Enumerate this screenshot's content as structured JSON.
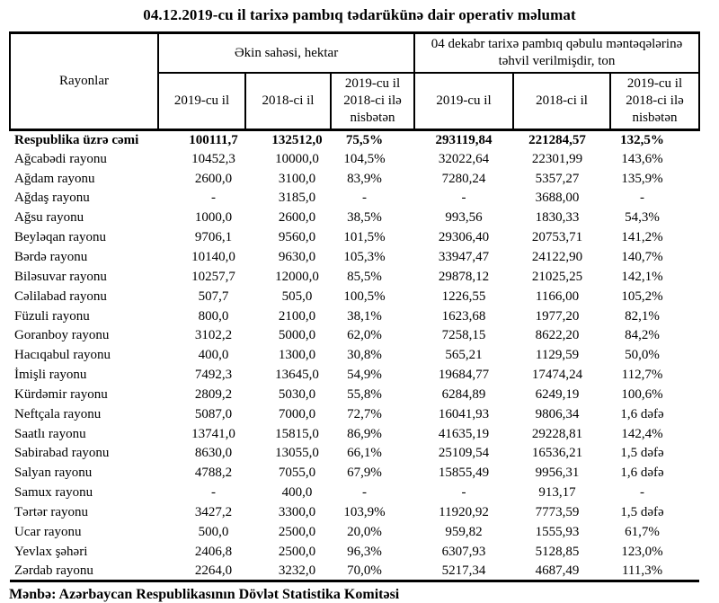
{
  "title": "04.12.2019-cu il tarixə pambıq tədarükünə dair operativ məlumat",
  "table": {
    "corner_header": "Rayonlar",
    "group_headers": [
      "Əkin sahəsi, hektar",
      "04 dekabr tarixə pambıq qəbulu məntəqələrinə təhvil verilmişdir, ton"
    ],
    "sub_headers": [
      "2019-cu il",
      "2018-ci il",
      "2019-cu il 2018-ci ilə nisbətən",
      "2019-cu il",
      "2018-ci il",
      "2019-cu il 2018-ci ilə nisbətən"
    ],
    "rows": [
      {
        "label": "Respublika üzrə cəmi",
        "bold": true,
        "values": [
          "100111,7",
          "132512,0",
          "75,5%",
          "293119,84",
          "221284,57",
          "132,5%"
        ]
      },
      {
        "label": "Ağcabədi rayonu",
        "bold": false,
        "values": [
          "10452,3",
          "10000,0",
          "104,5%",
          "32022,64",
          "22301,99",
          "143,6%"
        ]
      },
      {
        "label": "Ağdam rayonu",
        "bold": false,
        "values": [
          "2600,0",
          "3100,0",
          "83,9%",
          "7280,24",
          "5357,27",
          "135,9%"
        ]
      },
      {
        "label": "Ağdaş rayonu",
        "bold": false,
        "values": [
          "-",
          "3185,0",
          "-",
          "-",
          "3688,00",
          "-"
        ]
      },
      {
        "label": "Ağsu rayonu",
        "bold": false,
        "values": [
          "1000,0",
          "2600,0",
          "38,5%",
          "993,56",
          "1830,33",
          "54,3%"
        ]
      },
      {
        "label": "Beyləqan rayonu",
        "bold": false,
        "values": [
          "9706,1",
          "9560,0",
          "101,5%",
          "29306,40",
          "20753,71",
          "141,2%"
        ]
      },
      {
        "label": "Bərdə rayonu",
        "bold": false,
        "values": [
          "10140,0",
          "9630,0",
          "105,3%",
          "33947,47",
          "24122,90",
          "140,7%"
        ]
      },
      {
        "label": "Biləsuvar rayonu",
        "bold": false,
        "values": [
          "10257,7",
          "12000,0",
          "85,5%",
          "29878,12",
          "21025,25",
          "142,1%"
        ]
      },
      {
        "label": "Cəlilabad rayonu",
        "bold": false,
        "values": [
          "507,7",
          "505,0",
          "100,5%",
          "1226,55",
          "1166,00",
          "105,2%"
        ]
      },
      {
        "label": "Füzuli rayonu",
        "bold": false,
        "values": [
          "800,0",
          "2100,0",
          "38,1%",
          "1623,68",
          "1977,20",
          "82,1%"
        ]
      },
      {
        "label": "Goranboy rayonu",
        "bold": false,
        "values": [
          "3102,2",
          "5000,0",
          "62,0%",
          "7258,15",
          "8622,20",
          "84,2%"
        ]
      },
      {
        "label": "Hacıqabul rayonu",
        "bold": false,
        "values": [
          "400,0",
          "1300,0",
          "30,8%",
          "565,21",
          "1129,59",
          "50,0%"
        ]
      },
      {
        "label": "İmişli rayonu",
        "bold": false,
        "values": [
          "7492,3",
          "13645,0",
          "54,9%",
          "19684,77",
          "17474,24",
          "112,7%"
        ]
      },
      {
        "label": "Kürdəmir rayonu",
        "bold": false,
        "values": [
          "2809,2",
          "5030,0",
          "55,8%",
          "6284,89",
          "6249,19",
          "100,6%"
        ]
      },
      {
        "label": "Neftçala rayonu",
        "bold": false,
        "values": [
          "5087,0",
          "7000,0",
          "72,7%",
          "16041,93",
          "9806,34",
          "1,6 dəfə"
        ]
      },
      {
        "label": "Saatlı rayonu",
        "bold": false,
        "values": [
          "13741,0",
          "15815,0",
          "86,9%",
          "41635,19",
          "29228,81",
          "142,4%"
        ]
      },
      {
        "label": "Sabirabad rayonu",
        "bold": false,
        "values": [
          "8630,0",
          "13055,0",
          "66,1%",
          "25109,54",
          "16536,21",
          "1,5 dəfə"
        ]
      },
      {
        "label": "Salyan rayonu",
        "bold": false,
        "values": [
          "4788,2",
          "7055,0",
          "67,9%",
          "15855,49",
          "9956,31",
          "1,6 dəfə"
        ]
      },
      {
        "label": "Samux rayonu",
        "bold": false,
        "values": [
          "-",
          "400,0",
          "-",
          "-",
          "913,17",
          "-"
        ]
      },
      {
        "label": "Tərtər rayonu",
        "bold": false,
        "values": [
          "3427,2",
          "3300,0",
          "103,9%",
          "11920,92",
          "7773,59",
          "1,5 dəfə"
        ]
      },
      {
        "label": "Ucar rayonu",
        "bold": false,
        "values": [
          "500,0",
          "2500,0",
          "20,0%",
          "959,82",
          "1555,93",
          "61,7%"
        ]
      },
      {
        "label": "Yevlax şəhəri",
        "bold": false,
        "values": [
          "2406,8",
          "2500,0",
          "96,3%",
          "6307,93",
          "5128,85",
          "123,0%"
        ]
      },
      {
        "label": "Zərdab rayonu",
        "bold": false,
        "values": [
          "2264,0",
          "3232,0",
          "70,0%",
          "5217,34",
          "4687,49",
          "111,3%"
        ]
      }
    ]
  },
  "source": "Mənbə: Azərbaycan Respublikasının Dövlət Statistika Komitəsi"
}
